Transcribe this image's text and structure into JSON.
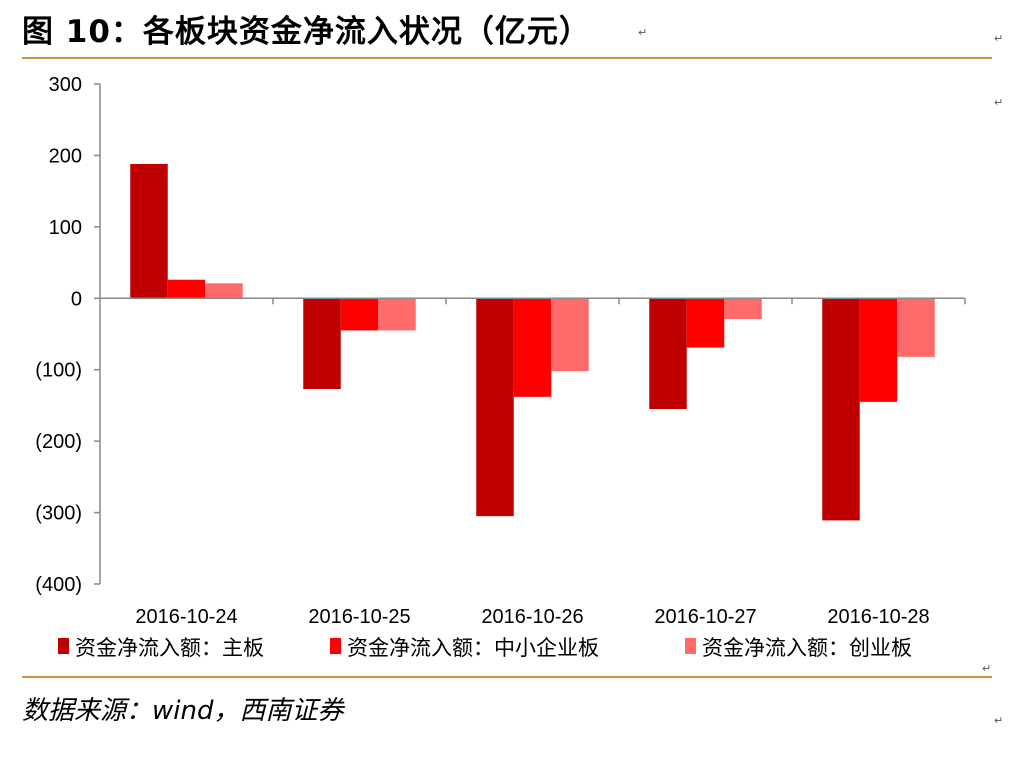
{
  "header": {
    "title": "图 10：各板块资金净流入状况（亿元）"
  },
  "footer": {
    "source": "数据来源：wind，西南证券"
  },
  "marks": {
    "pilcrow": "↵"
  },
  "colors": {
    "rule": "#c8963c"
  },
  "chart_data": {
    "type": "bar",
    "title": "",
    "xlabel": "",
    "ylabel": "",
    "ylim": [
      -400,
      300
    ],
    "yticks": [
      300,
      200,
      100,
      0,
      -100,
      -200,
      -300,
      -400
    ],
    "ytick_labels": [
      "300",
      "200",
      "100",
      "0",
      "(100)",
      "(200)",
      "(300)",
      "(400)"
    ],
    "categories": [
      "2016-10-24",
      "2016-10-25",
      "2016-10-26",
      "2016-10-27",
      "2016-10-28"
    ],
    "legend_position": "bottom",
    "grid": false,
    "series": [
      {
        "name": "资金净流入额：主板",
        "color": "#c00000",
        "values": [
          188,
          -127,
          -305,
          -155,
          -311
        ]
      },
      {
        "name": "资金净流入额：中小企业板",
        "color": "#ff0000",
        "values": [
          26,
          -45,
          -138,
          -69,
          -145
        ]
      },
      {
        "name": "资金净流入额：创业板",
        "color": "#ff6b6b",
        "values": [
          21,
          -45,
          -102,
          -29,
          -82
        ]
      }
    ]
  }
}
